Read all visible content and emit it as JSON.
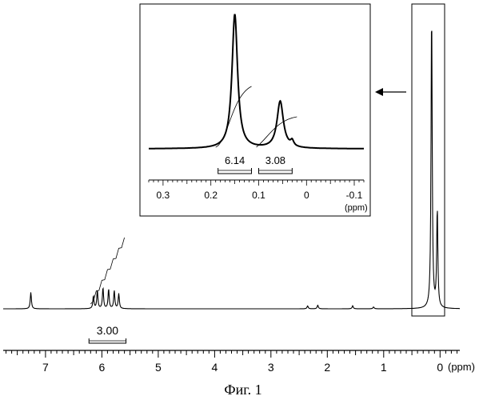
{
  "caption": "Фиг. 1",
  "main": {
    "xunit": "(ppm)",
    "xlim": [
      7.75,
      -0.35
    ],
    "tick_labels": [
      "7",
      "6",
      "5",
      "4",
      "3",
      "2",
      "1",
      "0"
    ],
    "tick_values": [
      7,
      6,
      5,
      4,
      3,
      2,
      1,
      0
    ],
    "integral_label": "3.00",
    "integral_range": [
      6.2,
      5.6
    ]
  },
  "inset": {
    "xunit": "(ppm)",
    "xlim": [
      0.33,
      -0.12
    ],
    "tick_labels": [
      "0.3",
      "0.2",
      "0.1",
      "0",
      "-0.1"
    ],
    "tick_values": [
      0.3,
      0.2,
      0.1,
      0,
      -0.1
    ],
    "integrals": [
      {
        "label": "6.14",
        "range": [
          0.185,
          0.115
        ]
      },
      {
        "label": "3.08",
        "range": [
          0.1,
          0.03
        ]
      }
    ]
  },
  "chart_data": [
    {
      "type": "line",
      "title": "",
      "xlabel": "(ppm)",
      "ylabel": "",
      "xlim": [
        7.75,
        -0.35
      ],
      "x_reversed": true,
      "peaks_ppm": [
        7.26,
        6.15,
        6.08,
        5.98,
        5.88,
        5.78,
        5.7,
        2.35,
        2.17,
        1.55,
        1.18,
        0.15,
        0.05
      ],
      "peak_heights_rel": [
        0.055,
        0.042,
        0.06,
        0.07,
        0.065,
        0.06,
        0.05,
        0.01,
        0.012,
        0.01,
        0.006,
        1.0,
        0.33
      ],
      "integrals": [
        {
          "range_ppm": [
            6.2,
            5.6
          ],
          "value": 3.0
        }
      ]
    },
    {
      "type": "line",
      "title": "",
      "xlabel": "(ppm)",
      "ylabel": "",
      "xlim": [
        0.33,
        -0.12
      ],
      "x_reversed": true,
      "peaks_ppm": [
        0.15,
        0.055,
        0.03
      ],
      "peak_heights_rel": [
        1.0,
        0.35,
        0.04
      ],
      "integrals": [
        {
          "range_ppm": [
            0.185,
            0.115
          ],
          "value": 6.14
        },
        {
          "range_ppm": [
            0.1,
            0.03
          ],
          "value": 3.08
        }
      ]
    }
  ]
}
